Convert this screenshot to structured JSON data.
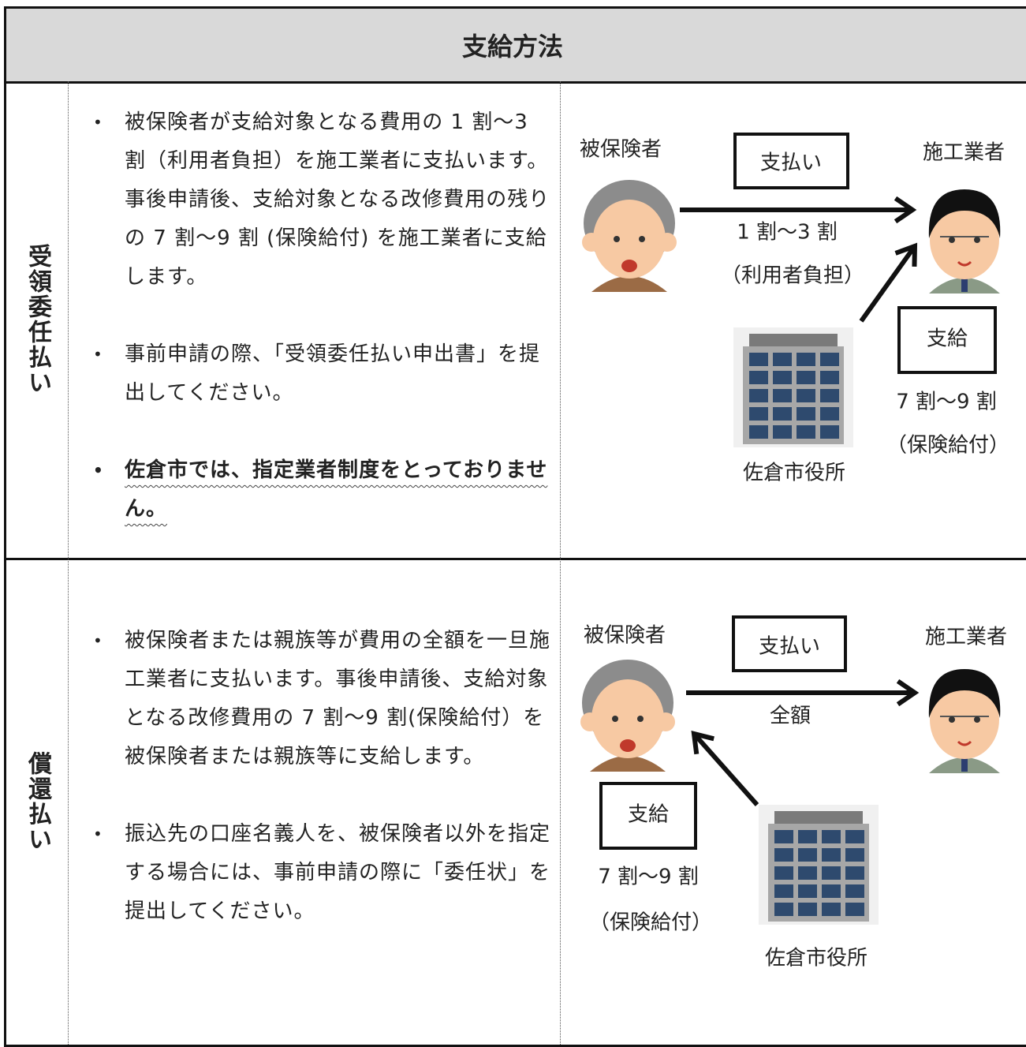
{
  "header": {
    "title": "支給方法"
  },
  "rows": [
    {
      "label": "受領委任払い",
      "bullets": [
        "被保険者が支給対象となる費用の 1 割～3 割（利用者負担）を施工業者に支払います。事後申請後、支給対象となる改修費用の残りの 7 割～9 割 (保険給付) を施工業者に支給します。",
        "事前申請の際、「受領委任払い申出書」を提出してください。",
        "佐倉市では、指定業者制度をとっておりません。"
      ],
      "diagram": {
        "insured": "被保険者",
        "contractor": "施工業者",
        "city": "佐倉市役所",
        "payment_box": "支払い",
        "payment_amount": "1 割～3 割",
        "payment_note": "（利用者負担）",
        "benefit_box": "支給",
        "benefit_amount": "7 割～9 割",
        "benefit_note": "（保険給付）"
      }
    },
    {
      "label": "償還払い",
      "bullets": [
        "被保険者または親族等が費用の全額を一旦施工業者に支払います。事後申請後、支給対象となる改修費用の 7 割～9 割(保険給付）を被保険者または親族等に支給します。",
        "振込先の口座名義人を、被保険者以外を指定する場合には、事前申請の際に「委任状」を提出してください。"
      ],
      "diagram": {
        "insured": "被保険者",
        "contractor": "施工業者",
        "city": "佐倉市役所",
        "payment_box": "支払い",
        "payment_amount": "全額",
        "benefit_box": "支給",
        "benefit_amount": "7 割～9 割",
        "benefit_note": "（保険給付）"
      }
    }
  ]
}
